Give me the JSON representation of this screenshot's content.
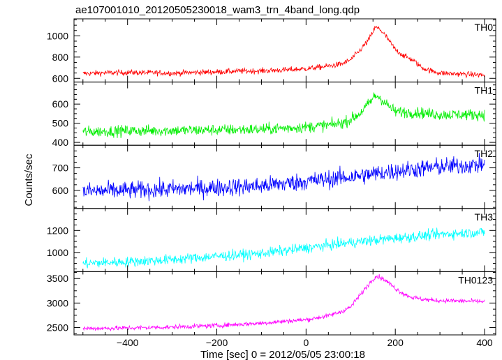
{
  "chart_data": {
    "type": "line",
    "title": "ae107001010_20120505230018_wam3_trn_4band_long.qdp",
    "xlabel": "Time [sec] 0 = 2012/05/05 23:00:18",
    "ylabel": "Counts/sec",
    "xlim": [
      -520,
      425
    ],
    "x_ticks": [
      -400,
      -200,
      0,
      200,
      400
    ],
    "panels": [
      {
        "name": "TH0",
        "color": "#ff0000",
        "ylim": [
          565,
          1160
        ],
        "y_ticks": [
          600,
          800,
          1000
        ],
        "x": [
          -500,
          -450,
          -400,
          -350,
          -300,
          -250,
          -200,
          -150,
          -100,
          -50,
          0,
          50,
          80,
          100,
          120,
          140,
          155,
          165,
          180,
          200,
          220,
          240,
          260,
          280,
          300,
          350,
          400
        ],
        "y": [
          645,
          652,
          655,
          653,
          648,
          655,
          660,
          668,
          670,
          678,
          690,
          715,
          735,
          775,
          860,
          960,
          1080,
          1065,
          990,
          870,
          810,
          770,
          700,
          670,
          650,
          640,
          630
        ],
        "noise": 25
      },
      {
        "name": "TH1",
        "color": "#00ee00",
        "ylim": [
          385,
          715
        ],
        "y_ticks": [
          400,
          500,
          600
        ],
        "x": [
          -500,
          -400,
          -300,
          -200,
          -100,
          0,
          50,
          80,
          100,
          120,
          140,
          155,
          165,
          180,
          200,
          250,
          300,
          350,
          400
        ],
        "y": [
          455,
          460,
          462,
          465,
          468,
          480,
          490,
          500,
          520,
          550,
          600,
          645,
          635,
          600,
          560,
          555,
          545,
          545,
          545
        ],
        "noise": 28
      },
      {
        "name": "TH2",
        "color": "#0000ff",
        "ylim": [
          520,
          800
        ],
        "y_ticks": [
          600,
          700
        ],
        "x": [
          -500,
          -400,
          -300,
          -200,
          -100,
          0,
          100,
          200,
          300,
          400
        ],
        "y": [
          595,
          600,
          605,
          612,
          620,
          640,
          660,
          685,
          705,
          715
        ],
        "noise": 38
      },
      {
        "name": "TH3",
        "color": "#00ffff",
        "ylim": [
          825,
          1400
        ],
        "y_ticks": [
          1000,
          1200
        ],
        "x": [
          -500,
          -400,
          -300,
          -200,
          -100,
          0,
          100,
          200,
          300,
          400
        ],
        "y": [
          900,
          915,
          935,
          965,
          990,
          1040,
          1090,
          1130,
          1165,
          1185
        ],
        "noise": 45
      },
      {
        "name": "TH0123",
        "color": "#ff00ff",
        "ylim": [
          2350,
          3640
        ],
        "y_ticks": [
          2500,
          3000,
          3500
        ],
        "x": [
          -500,
          -400,
          -300,
          -200,
          -100,
          0,
          50,
          80,
          100,
          120,
          140,
          155,
          165,
          180,
          200,
          220,
          240,
          260,
          280,
          300,
          350,
          400
        ],
        "y": [
          2480,
          2490,
          2510,
          2540,
          2590,
          2660,
          2740,
          2830,
          2920,
          3150,
          3380,
          3540,
          3530,
          3450,
          3300,
          3180,
          3110,
          3080,
          3060,
          3050,
          3040,
          3030
        ],
        "noise": 45
      }
    ]
  }
}
